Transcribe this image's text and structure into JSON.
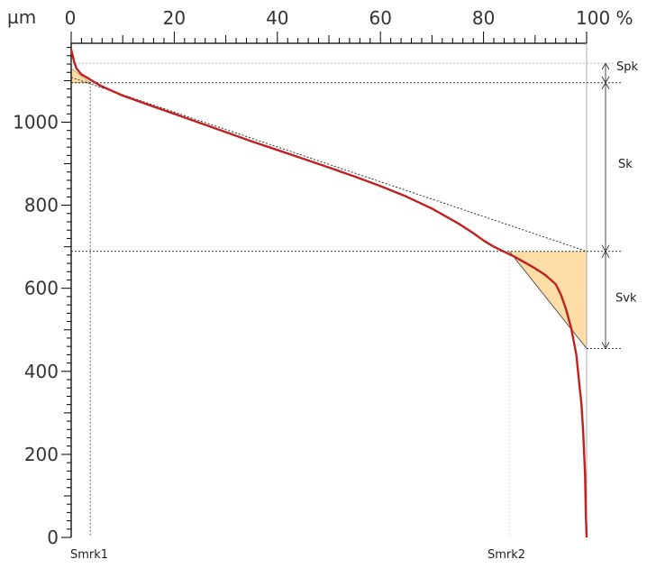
{
  "chart_data": {
    "type": "line",
    "title": "",
    "xlabel": "",
    "ylabel": "",
    "x_unit": "%",
    "y_unit": "µm",
    "xlim": [
      0,
      100
    ],
    "ylim": [
      0,
      1190
    ],
    "x_ticks": [
      0,
      20,
      40,
      60,
      80,
      100
    ],
    "y_ticks": [
      0,
      200,
      400,
      600,
      800,
      1000
    ],
    "x_tick_labels": [
      "0",
      "20",
      "40",
      "60",
      "80",
      "100 %"
    ],
    "y_tick_labels": [
      "0",
      "200",
      "400",
      "600",
      "800",
      "1000"
    ],
    "grid": false,
    "colors": {
      "curve": "#c0201f",
      "fill": "#ffdda6",
      "fill_edge": "#c89a5a",
      "axis": "#000000"
    },
    "series": [
      {
        "x": [
          0,
          0.3,
          0.6,
          1,
          1.5,
          2,
          3,
          4,
          5,
          6,
          8,
          10,
          15,
          20,
          25,
          30,
          35,
          40,
          45,
          50,
          55,
          60,
          65,
          70,
          75,
          78,
          80,
          82,
          84,
          85,
          86,
          88,
          90,
          92,
          94,
          95,
          96,
          97,
          98,
          98.5,
          99,
          99.3,
          99.5,
          99.7,
          99.85,
          100
        ],
        "y": [
          1175,
          1160,
          1145,
          1130,
          1122,
          1115,
          1108,
          1100,
          1093,
          1086,
          1075,
          1064,
          1042,
          1020,
          998,
          976,
          954,
          933,
          912,
          891,
          869,
          846,
          821,
          792,
          757,
          733,
          715,
          700,
          688,
          682,
          676,
          662,
          648,
          632,
          610,
          585,
          550,
          505,
          440,
          380,
          320,
          260,
          210,
          150,
          60,
          0
        ]
      }
    ],
    "regions": {
      "spk_fill": {
        "x": [
          0,
          0,
          3.7
        ],
        "y": [
          1095,
          1130,
          1095
        ]
      },
      "svk_fill": {
        "x": [
          85,
          100,
          100
        ],
        "y": [
          689,
          689,
          455
        ]
      }
    },
    "reference_lines": {
      "upper_dotted_y": 1142,
      "spk_level_y": 1095,
      "svk_level_y": 689,
      "bottom_y": 455,
      "smrk1_x": 3.7,
      "smrk2_x": 85
    },
    "annotations": {
      "spk": "Spk",
      "sk": "Sk",
      "svk": "Svk",
      "smrk1": "Smrk1",
      "smrk2": "Smrk2"
    }
  }
}
